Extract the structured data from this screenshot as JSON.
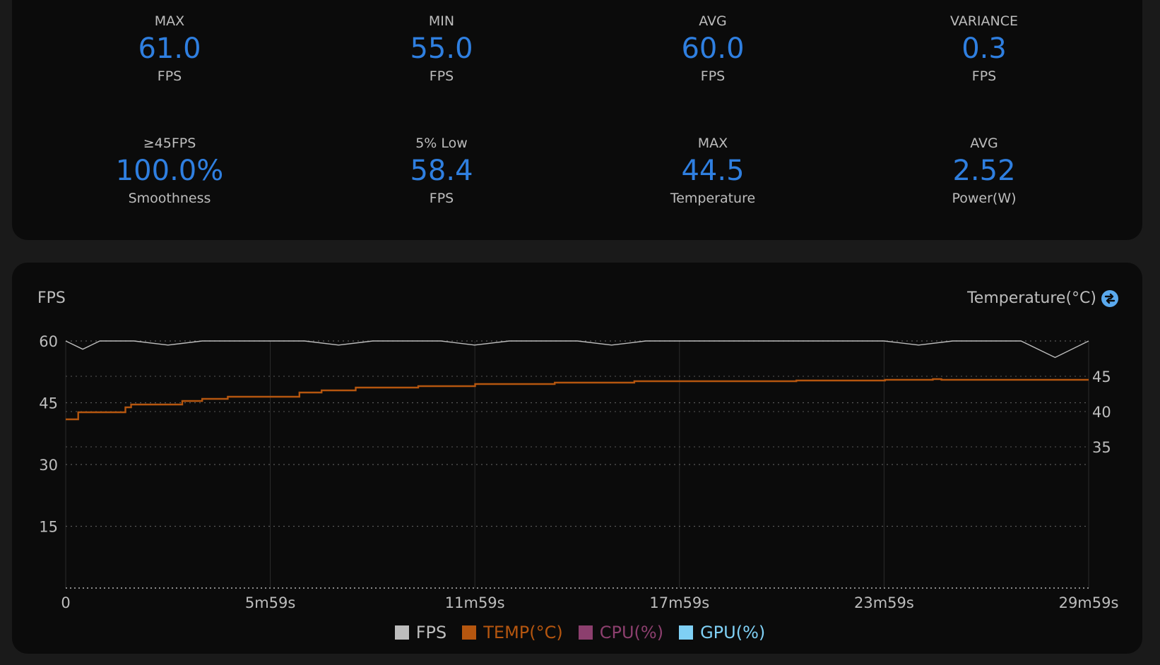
{
  "stats": [
    {
      "label": "MAX",
      "value": "61.0",
      "unit": "FPS"
    },
    {
      "label": "MIN",
      "value": "55.0",
      "unit": "FPS"
    },
    {
      "label": "AVG",
      "value": "60.0",
      "unit": "FPS"
    },
    {
      "label": "VARIANCE",
      "value": "0.3",
      "unit": "FPS"
    },
    {
      "label": "≥45FPS",
      "value": "100.0%",
      "unit": "Smoothness"
    },
    {
      "label": "5% Low",
      "value": "58.4",
      "unit": "FPS"
    },
    {
      "label": "MAX",
      "value": "44.5",
      "unit": "Temperature"
    },
    {
      "label": "AVG",
      "value": "2.52",
      "unit": "Power(W)"
    }
  ],
  "chart": {
    "left_axis_title": "FPS",
    "right_axis_title": "Temperature(°C)",
    "swap_icon": "swap-axis-icon"
  },
  "legend": [
    {
      "label": "FPS",
      "color": "#bdbdbd"
    },
    {
      "label": "TEMP(°C)",
      "color": "#b5560f"
    },
    {
      "label": "CPU(%)",
      "color": "#8c3f6e"
    },
    {
      "label": "GPU(%)",
      "color": "#7fd0f5"
    }
  ],
  "chart_data": {
    "type": "line",
    "x_ticks": [
      "0",
      "5m59s",
      "11m59s",
      "17m59s",
      "23m59s",
      "29m59s"
    ],
    "x_range_seconds": [
      0,
      1799
    ],
    "y_left_ticks": [
      60,
      45,
      30,
      15
    ],
    "y_left_range": [
      0,
      60
    ],
    "y_right_ticks": [
      45,
      40,
      35
    ],
    "y_right_range": [
      15,
      50
    ],
    "grid": true,
    "legend_position": "bottom",
    "series": [
      {
        "name": "FPS",
        "axis": "left",
        "color": "#bdbdbd",
        "x_seconds": [
          0,
          30,
          60,
          120,
          180,
          240,
          300,
          359,
          420,
          480,
          540,
          600,
          660,
          719,
          780,
          840,
          900,
          960,
          1020,
          1079,
          1140,
          1200,
          1260,
          1320,
          1380,
          1439,
          1500,
          1560,
          1620,
          1680,
          1740,
          1799
        ],
        "values": [
          60,
          58,
          60,
          60,
          59,
          60,
          60,
          60,
          60,
          59,
          60,
          60,
          60,
          59,
          60,
          60,
          60,
          59,
          60,
          60,
          60,
          60,
          60,
          60,
          60,
          60,
          59,
          60,
          60,
          60,
          56,
          60
        ]
      },
      {
        "name": "TEMP(°C)",
        "axis": "right",
        "color": "#b5560f",
        "x_seconds": [
          0,
          22,
          105,
          115,
          205,
          240,
          285,
          411,
          450,
          510,
          620,
          720,
          860,
          1000,
          1285,
          1441,
          1525,
          1540,
          1799
        ],
        "values": [
          38.9,
          39.9,
          40.6,
          41.0,
          41.5,
          41.8,
          42.1,
          42.7,
          43.0,
          43.4,
          43.6,
          43.9,
          44.1,
          44.3,
          44.4,
          44.5,
          44.6,
          44.5,
          44.5
        ]
      }
    ]
  }
}
